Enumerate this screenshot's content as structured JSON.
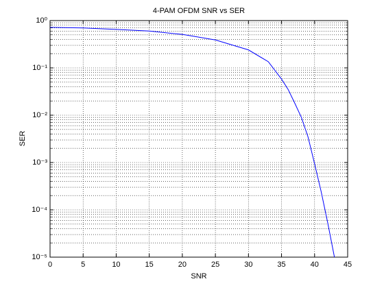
{
  "chart_data": {
    "type": "line",
    "title": "4-PAM OFDM SNR vs SER",
    "x_label": "SNR",
    "y_label": "SER",
    "x": [
      0,
      5,
      10,
      15,
      20,
      25,
      30,
      33,
      35,
      36,
      37,
      38,
      39,
      40,
      41,
      42,
      43
    ],
    "series": [
      {
        "name": "SER",
        "color": "#0000ff",
        "values": [
          0.72,
          0.7,
          0.65,
          0.6,
          0.51,
          0.39,
          0.24,
          0.135,
          0.058,
          0.035,
          0.018,
          0.009,
          0.0035,
          0.00094,
          0.00024,
          5.2e-05,
          1e-05
        ]
      }
    ],
    "xlim": [
      0,
      45
    ],
    "xticks": [
      0,
      5,
      10,
      15,
      20,
      25,
      30,
      35,
      40,
      45
    ],
    "ylim": [
      1e-05,
      1
    ],
    "ylog": true,
    "yticks": [
      {
        "value": 1e-05,
        "label": "10⁻⁵"
      },
      {
        "value": 0.0001,
        "label": "10⁻⁴"
      },
      {
        "value": 0.001,
        "label": "10⁻³"
      },
      {
        "value": 0.01,
        "label": "10⁻²"
      },
      {
        "value": 0.1,
        "label": "10⁻¹"
      },
      {
        "value": 1,
        "label": "10⁰"
      }
    ],
    "grid": true,
    "minor_grid": true
  }
}
